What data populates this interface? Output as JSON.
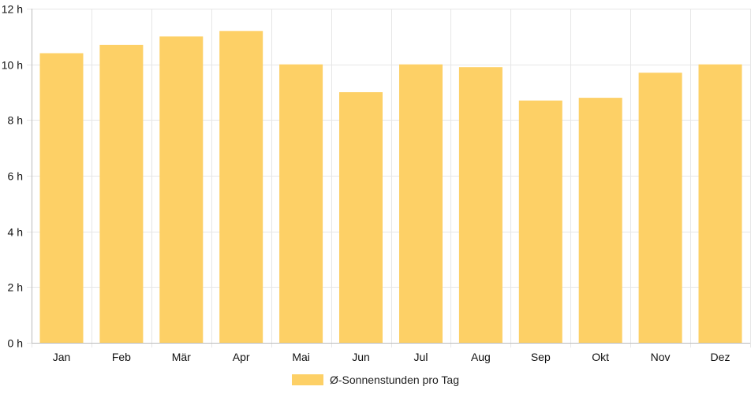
{
  "chart_data": {
    "type": "bar",
    "categories": [
      "Jan",
      "Feb",
      "Mär",
      "Apr",
      "Mai",
      "Jun",
      "Jul",
      "Aug",
      "Sep",
      "Okt",
      "Nov",
      "Dez"
    ],
    "series": [
      {
        "name": "Ø-Sonnenstunden pro Tag",
        "values": [
          10.4,
          10.7,
          11.0,
          11.2,
          10.0,
          9.0,
          10.0,
          9.9,
          8.7,
          8.8,
          9.7,
          10.0
        ]
      }
    ],
    "ylim": [
      0,
      12
    ],
    "yticks": [
      0,
      2,
      4,
      6,
      8,
      10,
      12
    ],
    "ytick_labels": [
      "0 h",
      "2 h",
      "4 h",
      "6 h",
      "8 h",
      "10 h",
      "12 h"
    ],
    "grid": true,
    "legend_position": "bottom-center",
    "colors": {
      "bar": "#fdd066",
      "grid": "#e6e6e6",
      "axis": "#bbbbbb"
    }
  }
}
